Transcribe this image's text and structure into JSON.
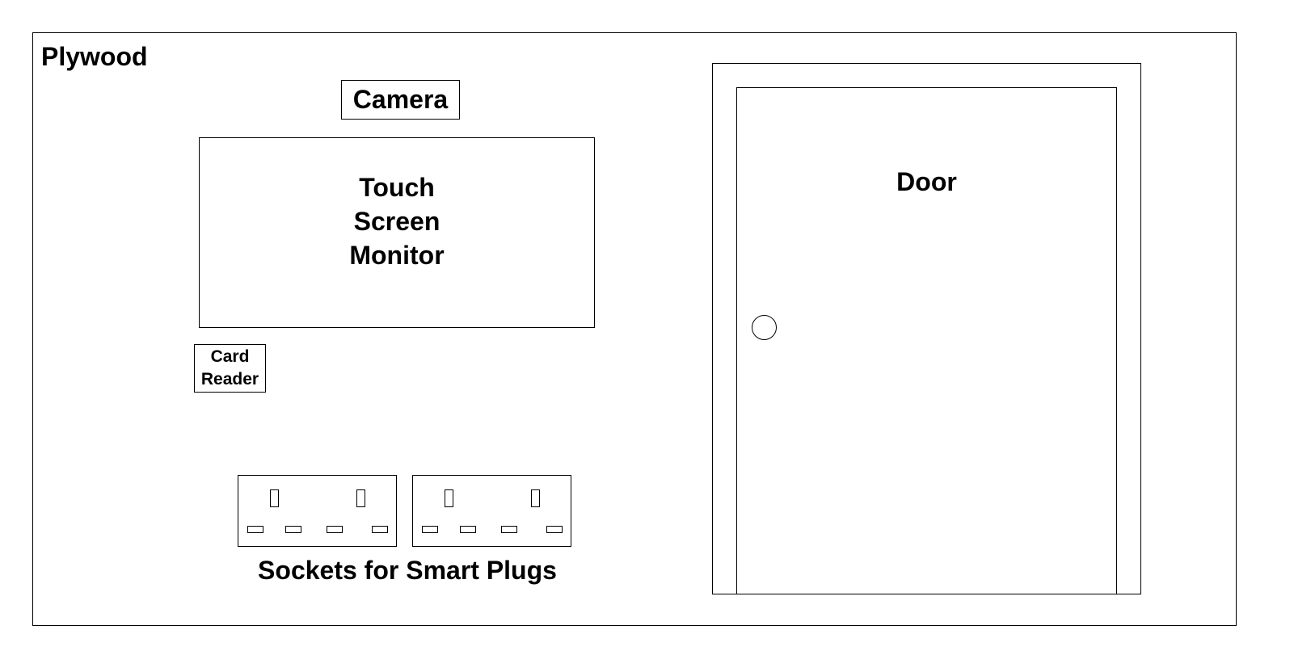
{
  "diagram": {
    "board": {
      "label": "Plywood"
    },
    "camera": {
      "label": "Camera"
    },
    "monitor": {
      "label_lines": [
        "Touch",
        "Screen",
        "Monitor"
      ]
    },
    "card_reader": {
      "label_lines": [
        "Card",
        "Reader"
      ]
    },
    "sockets": {
      "label": "Sockets for Smart Plugs",
      "count": 2
    },
    "door": {
      "label": "Door"
    },
    "colors": {
      "stroke": "#000000",
      "fill": "#ffffff",
      "text": "#000000"
    },
    "icons": {
      "socket": "uk-double-socket-icon",
      "door_handle": "door-knob-icon"
    }
  }
}
